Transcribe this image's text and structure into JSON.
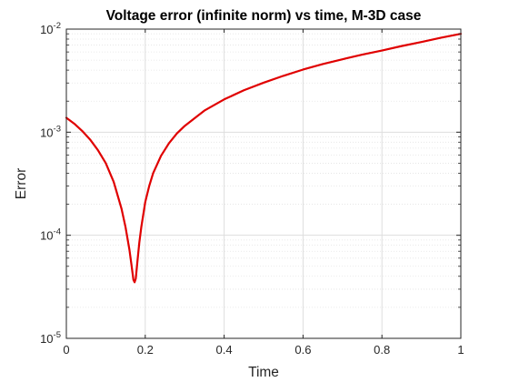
{
  "chart_data": {
    "type": "line",
    "title": "Voltage error (infinite norm) vs time, M-3D case",
    "xlabel": "Time",
    "ylabel": "Error",
    "xlim": [
      0,
      1
    ],
    "ylim": [
      1e-05,
      0.01
    ],
    "yscale": "log",
    "grid": true,
    "minor_grid": true,
    "legend": "none",
    "x_ticks": [
      {
        "value": 0,
        "label": "0"
      },
      {
        "value": 0.2,
        "label": "0.2"
      },
      {
        "value": 0.4,
        "label": "0.4"
      },
      {
        "value": 0.6,
        "label": "0.6"
      },
      {
        "value": 0.8,
        "label": "0.8"
      },
      {
        "value": 1,
        "label": "1"
      }
    ],
    "y_ticks": [
      {
        "value": 1e-05,
        "base": "10",
        "exp": "-5"
      },
      {
        "value": 0.0001,
        "base": "10",
        "exp": "-4"
      },
      {
        "value": 0.001,
        "base": "10",
        "exp": "-3"
      },
      {
        "value": 0.01,
        "base": "10",
        "exp": "-2"
      }
    ],
    "series": [
      {
        "color": "#e00000",
        "x": [
          0,
          0.02,
          0.04,
          0.06,
          0.08,
          0.1,
          0.12,
          0.14,
          0.15,
          0.16,
          0.165,
          0.17,
          0.173,
          0.176,
          0.18,
          0.185,
          0.19,
          0.2,
          0.21,
          0.22,
          0.24,
          0.26,
          0.28,
          0.3,
          0.35,
          0.4,
          0.45,
          0.5,
          0.55,
          0.6,
          0.65,
          0.7,
          0.75,
          0.8,
          0.85,
          0.9,
          0.95,
          1.0
        ],
        "y": [
          0.00138,
          0.00121,
          0.00103,
          0.00085,
          0.00067,
          0.0005,
          0.00033,
          0.00018,
          0.00012,
          7.2e-05,
          5.2e-05,
          3.7e-05,
          3.5e-05,
          3.8e-05,
          5.5e-05,
          8.5e-05,
          0.00012,
          0.00021,
          0.0003,
          0.0004,
          0.00059,
          0.00078,
          0.00097,
          0.00115,
          0.00162,
          0.00208,
          0.00255,
          0.00302,
          0.00352,
          0.00405,
          0.00458,
          0.0051,
          0.00565,
          0.0062,
          0.00685,
          0.0075,
          0.00825,
          0.009
        ]
      }
    ]
  }
}
